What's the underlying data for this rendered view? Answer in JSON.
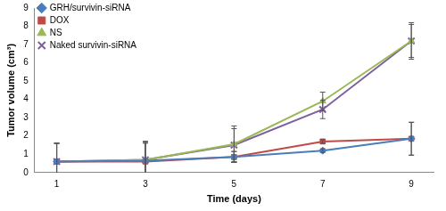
{
  "chart_data": {
    "type": "line",
    "x_label": "Time (days)",
    "y_label": "Tumor volume (cm³)",
    "x": [
      1,
      3,
      5,
      7,
      9
    ],
    "xlim": [
      0.5,
      9.5
    ],
    "xticks": [
      1,
      3,
      5,
      7,
      9
    ],
    "ylim": [
      0,
      9
    ],
    "yticks": [
      0,
      1,
      2,
      3,
      4,
      5,
      6,
      7,
      8,
      9
    ],
    "grid": false,
    "legend": "top-left",
    "series": [
      {
        "name": "GRH/survivin-siRNA",
        "color": "#4a7ebb",
        "marker": "diamond",
        "line_style": "solid",
        "values": [
          0.6,
          0.65,
          0.85,
          1.2,
          1.85
        ],
        "errors": [
          1.0,
          1.0,
          0.3,
          0.1,
          0.9
        ]
      },
      {
        "name": "DOX",
        "color": "#be4b48",
        "marker": "square",
        "line_style": "solid",
        "values": [
          0.6,
          0.6,
          0.85,
          1.7,
          1.85
        ],
        "errors": [
          1.0,
          1.0,
          0.3,
          0.1,
          0.9
        ]
      },
      {
        "name": "NS",
        "color": "#98b954",
        "marker": "triangle",
        "line_style": "solid",
        "values": [
          0.6,
          0.7,
          1.55,
          3.9,
          7.2
        ],
        "errors": [
          1.0,
          1.0,
          1.0,
          0.5,
          1.0
        ]
      },
      {
        "name": "Naked survivin-siRNA",
        "color": "#7d60a0",
        "marker": "x",
        "line_style": "solid",
        "values": [
          0.6,
          0.7,
          1.5,
          3.45,
          7.2
        ],
        "errors": [
          1.0,
          1.0,
          0.9,
          0.5,
          0.9
        ]
      }
    ]
  }
}
